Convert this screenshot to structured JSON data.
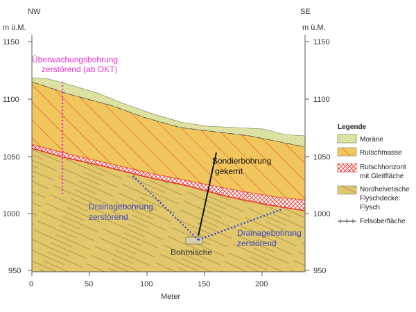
{
  "header": {
    "left_dir": "NW",
    "right_dir": "SE",
    "unit_left": "m ü.M.",
    "unit_right": "m ü.M."
  },
  "axes": {
    "y_ticks": [
      "1150",
      "1100",
      "1050",
      "1000",
      "950"
    ],
    "x_ticks": [
      "0",
      "50",
      "100",
      "150",
      "200"
    ],
    "x_label": "Meter"
  },
  "annotations": {
    "monitoring_line1": "Überwachungsbohrung",
    "monitoring_line2": "zerstörend (ab OKT)",
    "sounding_line1": "Sondierbohrung",
    "sounding_line2": "gekernt",
    "drain_left_line1": "Drainagebohrung",
    "drain_left_line2": "zerstörend",
    "drain_right_line1": "Drainagebohrung",
    "drain_right_line2": "zerstörend",
    "niche": "Bohrnische"
  },
  "legend": {
    "title": "Legende",
    "items": [
      {
        "label": "Moräne"
      },
      {
        "label": "Rutschmasse"
      },
      {
        "label": "Rutschhorizont",
        "label2": "mit Gleitfläche"
      },
      {
        "label": "Nordhelvetische",
        "label2": "Flyschdecke:",
        "label3": "Flysch"
      },
      {
        "label": "Felsoberfläche"
      }
    ]
  },
  "colors": {
    "moraine": "#dfe3a4",
    "slide_mass": "#f1c65c",
    "slide_hatch": "#e8352a",
    "slide_horizon": "#e8352a",
    "flysch": "#e3c76b",
    "monitoring": "#ee2fc9",
    "drainage": "#2f3fd6",
    "annotation_blue": "#3a48c8"
  }
}
